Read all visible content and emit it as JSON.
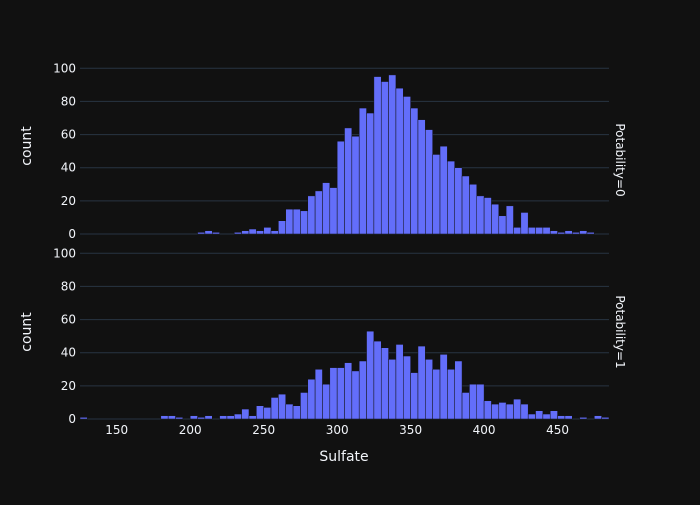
{
  "chart_data": {
    "type": "bar",
    "x_label": "Sulfate",
    "y_label": "count",
    "bin_width": 5,
    "x_range": [
      125,
      485
    ],
    "y_range": [
      0,
      105
    ],
    "x_ticks": [
      150,
      200,
      250,
      300,
      350,
      400,
      450
    ],
    "y_ticks": [
      0,
      20,
      40,
      60,
      80,
      100
    ],
    "grid": true,
    "bar_color": "#636efa",
    "background_color": "#111111",
    "grid_color": "#283442",
    "facets": [
      {
        "label": "Potability=0",
        "bins": [
          [
            205,
            1
          ],
          [
            210,
            2
          ],
          [
            215,
            1
          ],
          [
            230,
            1
          ],
          [
            235,
            2
          ],
          [
            240,
            3
          ],
          [
            245,
            2
          ],
          [
            250,
            4
          ],
          [
            255,
            2
          ],
          [
            260,
            8
          ],
          [
            265,
            15
          ],
          [
            270,
            15
          ],
          [
            275,
            14
          ],
          [
            280,
            23
          ],
          [
            285,
            26
          ],
          [
            290,
            31
          ],
          [
            295,
            28
          ],
          [
            300,
            56
          ],
          [
            305,
            64
          ],
          [
            310,
            59
          ],
          [
            315,
            76
          ],
          [
            320,
            73
          ],
          [
            325,
            95
          ],
          [
            330,
            92
          ],
          [
            335,
            96
          ],
          [
            340,
            88
          ],
          [
            345,
            83
          ],
          [
            350,
            76
          ],
          [
            355,
            69
          ],
          [
            360,
            63
          ],
          [
            365,
            48
          ],
          [
            370,
            53
          ],
          [
            375,
            44
          ],
          [
            380,
            40
          ],
          [
            385,
            35
          ],
          [
            390,
            30
          ],
          [
            395,
            23
          ],
          [
            400,
            22
          ],
          [
            405,
            18
          ],
          [
            410,
            11
          ],
          [
            415,
            17
          ],
          [
            420,
            4
          ],
          [
            425,
            13
          ],
          [
            430,
            4
          ],
          [
            435,
            4
          ],
          [
            440,
            4
          ],
          [
            445,
            2
          ],
          [
            450,
            1
          ],
          [
            455,
            2
          ],
          [
            460,
            1
          ],
          [
            465,
            2
          ],
          [
            470,
            1
          ]
        ]
      },
      {
        "label": "Potability=1",
        "bins": [
          [
            125,
            1
          ],
          [
            180,
            2
          ],
          [
            185,
            2
          ],
          [
            190,
            1
          ],
          [
            200,
            2
          ],
          [
            205,
            1
          ],
          [
            210,
            2
          ],
          [
            220,
            2
          ],
          [
            225,
            2
          ],
          [
            230,
            3
          ],
          [
            235,
            6
          ],
          [
            240,
            2
          ],
          [
            245,
            8
          ],
          [
            250,
            7
          ],
          [
            255,
            13
          ],
          [
            260,
            15
          ],
          [
            265,
            9
          ],
          [
            270,
            8
          ],
          [
            275,
            16
          ],
          [
            280,
            24
          ],
          [
            285,
            30
          ],
          [
            290,
            21
          ],
          [
            295,
            31
          ],
          [
            300,
            31
          ],
          [
            305,
            34
          ],
          [
            310,
            29
          ],
          [
            315,
            35
          ],
          [
            320,
            53
          ],
          [
            325,
            47
          ],
          [
            330,
            43
          ],
          [
            335,
            36
          ],
          [
            340,
            45
          ],
          [
            345,
            38
          ],
          [
            350,
            28
          ],
          [
            355,
            44
          ],
          [
            360,
            36
          ],
          [
            365,
            30
          ],
          [
            370,
            39
          ],
          [
            375,
            30
          ],
          [
            380,
            35
          ],
          [
            385,
            16
          ],
          [
            390,
            21
          ],
          [
            395,
            21
          ],
          [
            400,
            11
          ],
          [
            405,
            9
          ],
          [
            410,
            10
          ],
          [
            415,
            9
          ],
          [
            420,
            12
          ],
          [
            425,
            9
          ],
          [
            430,
            3
          ],
          [
            435,
            5
          ],
          [
            440,
            3
          ],
          [
            445,
            5
          ],
          [
            450,
            2
          ],
          [
            455,
            2
          ],
          [
            465,
            1
          ],
          [
            475,
            2
          ],
          [
            480,
            1
          ]
        ]
      }
    ]
  }
}
